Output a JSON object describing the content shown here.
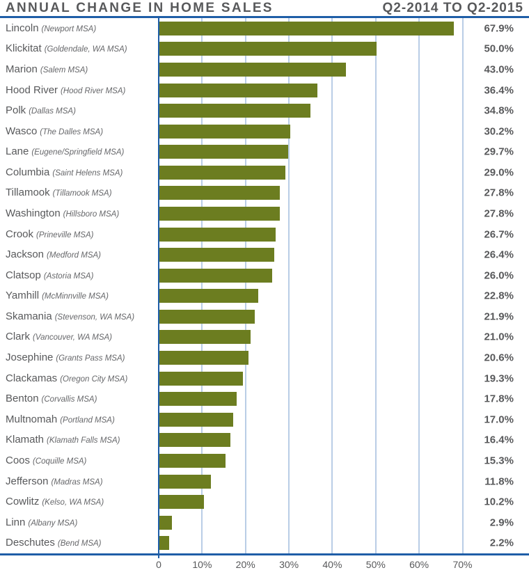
{
  "chart_data": {
    "type": "bar",
    "orientation": "horizontal",
    "title": "ANNUAL CHANGE IN HOME SALES",
    "subtitle": "Q2-2014 TO Q2-2015",
    "unit": "%",
    "legend": "none",
    "grid": true,
    "x_axis": {
      "min": 0,
      "max_tick": 70,
      "ticks": [
        {
          "label": "0",
          "pct": 0
        },
        {
          "label": "10%",
          "pct": 10
        },
        {
          "label": "20%",
          "pct": 20
        },
        {
          "label": "30%",
          "pct": 30
        },
        {
          "label": "40%",
          "pct": 40
        },
        {
          "label": "50%",
          "pct": 50
        },
        {
          "label": "60%",
          "pct": 60
        },
        {
          "label": "70%",
          "pct": 70
        }
      ]
    },
    "rows": [
      {
        "county": "Lincoln",
        "msa": "Newport MSA",
        "value": 67.9
      },
      {
        "county": "Klickitat",
        "msa": "Goldendale, WA MSA",
        "value": 50.0
      },
      {
        "county": "Marion",
        "msa": "Salem MSA",
        "value": 43.0
      },
      {
        "county": "Hood River",
        "msa": "Hood River MSA",
        "value": 36.4
      },
      {
        "county": "Polk",
        "msa": "Dallas MSA",
        "value": 34.8
      },
      {
        "county": "Wasco",
        "msa": "The Dalles MSA",
        "value": 30.2
      },
      {
        "county": "Lane",
        "msa": "Eugene/Springfield MSA",
        "value": 29.7
      },
      {
        "county": "Columbia",
        "msa": "Saint Helens MSA",
        "value": 29.0
      },
      {
        "county": "Tillamook",
        "msa": "Tillamook MSA",
        "value": 27.8
      },
      {
        "county": "Washington",
        "msa": "Hillsboro MSA",
        "value": 27.8
      },
      {
        "county": "Crook",
        "msa": "Prineville MSA",
        "value": 26.7
      },
      {
        "county": "Jackson",
        "msa": "Medford MSA",
        "value": 26.4
      },
      {
        "county": "Clatsop",
        "msa": "Astoria MSA",
        "value": 26.0
      },
      {
        "county": "Yamhill",
        "msa": "McMinnville MSA",
        "value": 22.8
      },
      {
        "county": "Skamania",
        "msa": "Stevenson, WA MSA",
        "value": 21.9
      },
      {
        "county": "Clark",
        "msa": "Vancouver, WA MSA",
        "value": 21.0
      },
      {
        "county": "Josephine",
        "msa": "Grants Pass MSA",
        "value": 20.6
      },
      {
        "county": "Clackamas",
        "msa": "Oregon City MSA",
        "value": 19.3
      },
      {
        "county": "Benton",
        "msa": "Corvallis MSA",
        "value": 17.8
      },
      {
        "county": "Multnomah",
        "msa": "Portland MSA",
        "value": 17.0
      },
      {
        "county": "Klamath",
        "msa": "Klamath Falls MSA",
        "value": 16.4
      },
      {
        "county": "Coos",
        "msa": "Coquille MSA",
        "value": 15.3
      },
      {
        "county": "Jefferson",
        "msa": "Madras MSA",
        "value": 11.8
      },
      {
        "county": "Cowlitz",
        "msa": "Kelso, WA MSA",
        "value": 10.2
      },
      {
        "county": "Linn",
        "msa": "Albany MSA",
        "value": 2.9
      },
      {
        "county": "Deschutes",
        "msa": "Bend MSA",
        "value": 2.2
      }
    ],
    "colors": {
      "bar": "#6C7D20",
      "axis_line": "#1F5EA7",
      "gridline": "#B9CDE6",
      "text": "#58595B"
    }
  }
}
